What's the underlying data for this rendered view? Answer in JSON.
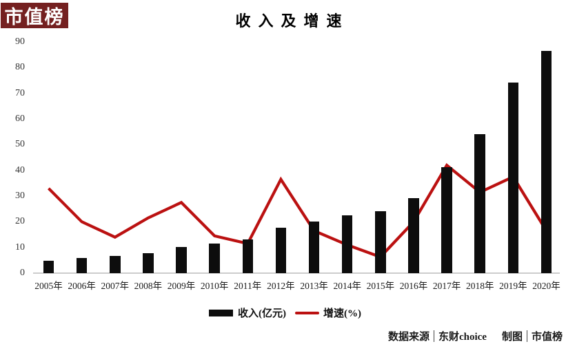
{
  "logo": {
    "text": "市值榜",
    "bg_color": "#742020",
    "text_color": "#ffffff"
  },
  "header": {
    "title": "收入及增速"
  },
  "legend": {
    "items": [
      {
        "label": "收入(亿元)",
        "marker": "bar-swatch",
        "color": "#0d0d0d"
      },
      {
        "label": "增速(%)",
        "marker": "line-swatch",
        "color": "#bb1111"
      }
    ]
  },
  "footer": {
    "source_label": "数据来源",
    "source_value": "东财choice",
    "credit_label": "制图",
    "credit_value": "市值榜"
  },
  "colors": {
    "bar": "#0d0d0d",
    "line": "#bb1111",
    "logo_bg": "#742020",
    "axis_line": "#cccccc"
  },
  "chart_data": {
    "type": "bar",
    "combo": "bar+line",
    "title": "收入及增速",
    "categories": [
      "2005年",
      "2006年",
      "2007年",
      "2008年",
      "2009年",
      "2010年",
      "2011年",
      "2012年",
      "2013年",
      "2014年",
      "2015年",
      "2016年",
      "2017年",
      "2018年",
      "2019年",
      "2020年"
    ],
    "series": [
      {
        "name": "收入(亿元)",
        "type": "bar",
        "color": "#0d0d0d",
        "values": [
          4.8,
          5.8,
          6.6,
          7.9,
          10.1,
          11.5,
          13.0,
          17.7,
          20.1,
          22.5,
          24.0,
          29.1,
          41.3,
          54.0,
          74.2,
          86.4
        ]
      },
      {
        "name": "增速(%)",
        "type": "line",
        "color": "#bb1111",
        "values": [
          33,
          20,
          14,
          21.5,
          27.5,
          14.5,
          11.5,
          36.5,
          16.5,
          11,
          6.3,
          20,
          42,
          31.5,
          37.5,
          16.5
        ]
      }
    ],
    "xlabel": "",
    "ylabel": "",
    "ylim": [
      0,
      90
    ],
    "yticks": [
      0,
      10,
      20,
      30,
      40,
      50,
      60,
      70,
      80,
      90
    ],
    "grid": false,
    "legend_position": "bottom"
  }
}
